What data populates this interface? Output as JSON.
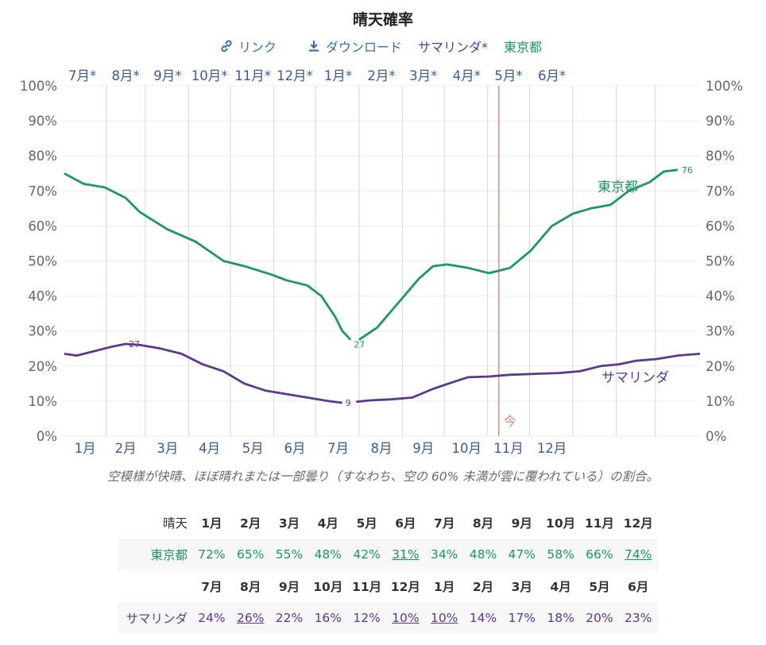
{
  "title": "晴天確率",
  "links": {
    "link_label": "リンク",
    "download_label": "ダウンロード",
    "samarinda_label": "サマリンダ*",
    "tokyo_label": "東京都"
  },
  "caption": "空模様が快晴、ほぼ晴れまたは一部曇り（すなわち、空の 60% 未満が雲に覆われている）の割合。",
  "chart_data": {
    "type": "line",
    "title": "晴天確率",
    "ylim": [
      0,
      100
    ],
    "y_ticks": [
      "0%",
      "10%",
      "20%",
      "30%",
      "40%",
      "50%",
      "60%",
      "70%",
      "80%",
      "90%",
      "100%"
    ],
    "x_bottom_labels": [
      "1月",
      "2月",
      "3月",
      "4月",
      "5月",
      "6月",
      "7月",
      "8月",
      "9月",
      "10月",
      "11月",
      "12月"
    ],
    "x_top_labels": [
      "7月*",
      "8月*",
      "9月*",
      "10月*",
      "11月*",
      "12月*",
      "1月*",
      "2月*",
      "3月*",
      "4月*",
      "5月*",
      "6月*"
    ],
    "now_label": "今",
    "now_day": 312,
    "grid": true,
    "series": [
      {
        "name": "東京都",
        "color": "#1a9a5f",
        "label_value_low": "27",
        "label_value_high": "76",
        "points": [
          [
            1,
            75
          ],
          [
            15,
            72
          ],
          [
            30,
            71
          ],
          [
            45,
            68
          ],
          [
            55,
            64
          ],
          [
            75,
            59
          ],
          [
            95,
            55.5
          ],
          [
            115,
            50
          ],
          [
            130,
            48.5
          ],
          [
            150,
            46
          ],
          [
            160,
            44.5
          ],
          [
            175,
            43
          ],
          [
            185,
            40
          ],
          [
            195,
            34
          ],
          [
            200,
            30
          ],
          [
            206,
            27.5
          ],
          [
            212,
            27.5
          ],
          [
            225,
            31
          ],
          [
            240,
            38
          ],
          [
            255,
            45
          ],
          [
            265,
            48.5
          ],
          [
            275,
            49
          ],
          [
            290,
            48
          ],
          [
            305,
            46.5
          ],
          [
            320,
            48
          ],
          [
            335,
            53
          ],
          [
            350,
            60
          ],
          [
            365,
            63.5
          ],
          [
            378,
            65
          ],
          [
            392,
            66
          ],
          [
            405,
            70
          ],
          [
            420,
            72.5
          ],
          [
            430,
            75.5
          ],
          [
            440,
            76
          ]
        ]
      },
      {
        "name": "サマリンダ",
        "color": "#5b3a8e",
        "label_value_max": "27",
        "label_value_min": "9",
        "points": [
          [
            1,
            23.5
          ],
          [
            10,
            23
          ],
          [
            25,
            24.5
          ],
          [
            35,
            25.5
          ],
          [
            45,
            26.3
          ],
          [
            55,
            26
          ],
          [
            70,
            25
          ],
          [
            85,
            23.5
          ],
          [
            100,
            20.5
          ],
          [
            115,
            18.5
          ],
          [
            130,
            15
          ],
          [
            145,
            13
          ],
          [
            160,
            12
          ],
          [
            175,
            11
          ],
          [
            190,
            10
          ],
          [
            200,
            9.5
          ],
          [
            210,
            9.8
          ],
          [
            220,
            10.2
          ],
          [
            235,
            10.5
          ],
          [
            250,
            11
          ],
          [
            265,
            13.5
          ],
          [
            280,
            15.5
          ],
          [
            290,
            16.8
          ],
          [
            305,
            17
          ],
          [
            320,
            17.5
          ],
          [
            340,
            17.8
          ],
          [
            355,
            18
          ],
          [
            370,
            18.5
          ],
          [
            385,
            20
          ],
          [
            398,
            20.5
          ],
          [
            410,
            21.5
          ],
          [
            425,
            22
          ],
          [
            440,
            23
          ],
          [
            456,
            23.5
          ]
        ]
      }
    ]
  },
  "table": {
    "header_label": "晴天",
    "months_1": [
      "1月",
      "2月",
      "3月",
      "4月",
      "5月",
      "6月",
      "7月",
      "8月",
      "9月",
      "10月",
      "11月",
      "12月"
    ],
    "tokyo_label": "東京都",
    "tokyo_values": [
      "72%",
      "65%",
      "55%",
      "48%",
      "42%",
      "31%",
      "34%",
      "48%",
      "47%",
      "58%",
      "66%",
      "74%"
    ],
    "months_2": [
      "7月",
      "8月",
      "9月",
      "10月",
      "11月",
      "12月",
      "1月",
      "2月",
      "3月",
      "4月",
      "5月",
      "6月"
    ],
    "samarinda_label": "サマリンダ",
    "samarinda_values": [
      "24%",
      "26%",
      "22%",
      "16%",
      "12%",
      "10%",
      "10%",
      "14%",
      "17%",
      "18%",
      "20%",
      "23%"
    ]
  }
}
